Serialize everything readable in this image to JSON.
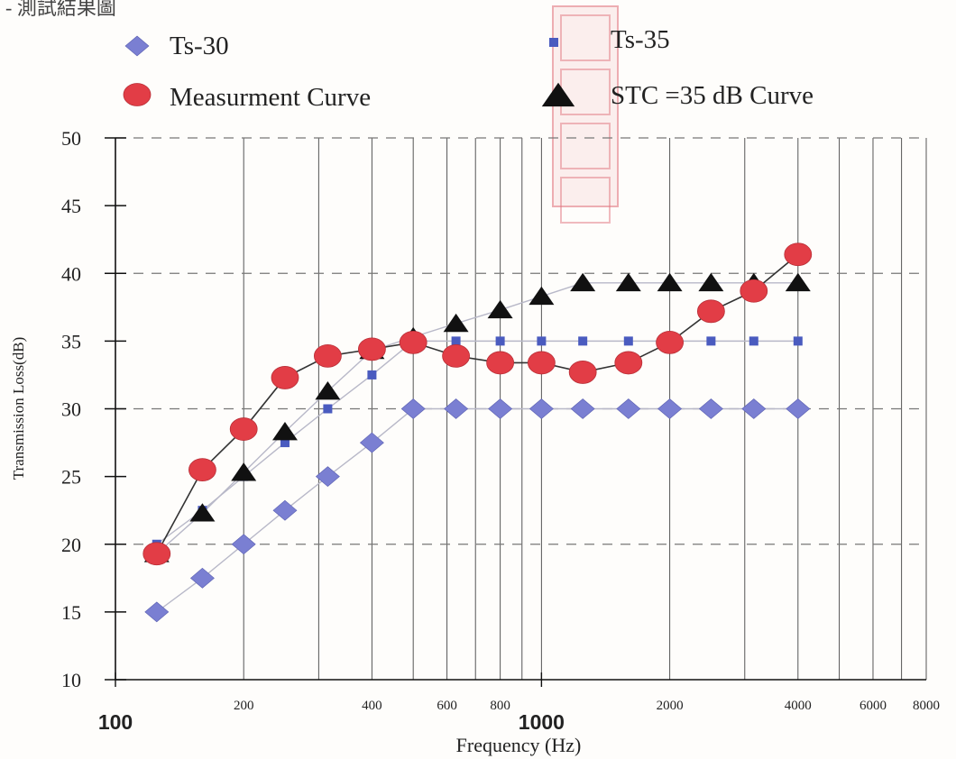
{
  "caption": "- 測試結果圖",
  "stamp_color": "#e27882",
  "chart_data": {
    "type": "line",
    "x_scale": "log",
    "xlabel": "Frequency (Hz)",
    "ylabel": "Transmission Loss(dB)",
    "xlim": [
      100,
      8000
    ],
    "ylim": [
      10,
      50
    ],
    "y_ticks": [
      10,
      15,
      20,
      25,
      30,
      35,
      40,
      45,
      50
    ],
    "x_major_ticks": [
      {
        "value": 100,
        "label": "100"
      },
      {
        "value": 1000,
        "label": "1000"
      }
    ],
    "x_minor_ticks": [
      {
        "value": 200,
        "label": "200"
      },
      {
        "value": 400,
        "label": "400"
      },
      {
        "value": 600,
        "label": "600"
      },
      {
        "value": 800,
        "label": "800"
      },
      {
        "value": 2000,
        "label": "2000"
      },
      {
        "value": 4000,
        "label": "4000"
      },
      {
        "value": 6000,
        "label": "6000"
      },
      {
        "value": 8000,
        "label": "8000"
      }
    ],
    "x_gridlines": [
      200,
      300,
      400,
      500,
      600,
      700,
      800,
      900,
      1000,
      2000,
      3000,
      4000,
      5000,
      6000,
      7000,
      8000
    ],
    "y_gridlines_dashed": [
      20,
      30,
      40,
      50
    ],
    "legend_placement": "top",
    "series": [
      {
        "name": "Ts-30",
        "marker": "diamond",
        "color": "#7a7fd2",
        "line_color": "#b8b8c8",
        "x": [
          125,
          160,
          200,
          250,
          315,
          400,
          500,
          630,
          800,
          1000,
          1250,
          1600,
          2000,
          2500,
          3150,
          4000
        ],
        "y": [
          15,
          17.5,
          20,
          22.5,
          25,
          27.5,
          30,
          30,
          30,
          30,
          30,
          30,
          30,
          30,
          30,
          30
        ]
      },
      {
        "name": "Ts-35",
        "marker": "square",
        "color": "#4a5bbf",
        "line_color": "#b8b8c8",
        "x": [
          125,
          160,
          200,
          250,
          315,
          400,
          500,
          630,
          800,
          1000,
          1250,
          1600,
          2000,
          2500,
          3150,
          4000
        ],
        "y": [
          20,
          22.5,
          25,
          27.5,
          30,
          32.5,
          35,
          35,
          35,
          35,
          35,
          35,
          35,
          35,
          35,
          35
        ]
      },
      {
        "name": "Measurment Curve",
        "marker": "circle",
        "color": "#e23d46",
        "line_color": "#333333",
        "x": [
          125,
          160,
          200,
          250,
          315,
          400,
          500,
          630,
          800,
          1000,
          1250,
          1600,
          2000,
          2500,
          3150,
          4000
        ],
        "y": [
          19.3,
          25.5,
          28.5,
          32.3,
          33.9,
          34.4,
          34.9,
          33.9,
          33.4,
          33.4,
          32.7,
          33.4,
          34.9,
          37.2,
          38.7,
          41.4
        ]
      },
      {
        "name": "STC =35 dB Curve",
        "marker": "triangle",
        "color": "#111111",
        "line_color": "#b8b8c8",
        "x": [
          125,
          160,
          200,
          250,
          315,
          400,
          500,
          630,
          800,
          1000,
          1250,
          1600,
          2000,
          2500,
          3150,
          4000
        ],
        "y": [
          19.3,
          22.3,
          25.3,
          28.3,
          31.3,
          34.3,
          35.3,
          36.3,
          37.3,
          38.3,
          39.3,
          39.3,
          39.3,
          39.3,
          39.3,
          39.3
        ]
      }
    ]
  }
}
